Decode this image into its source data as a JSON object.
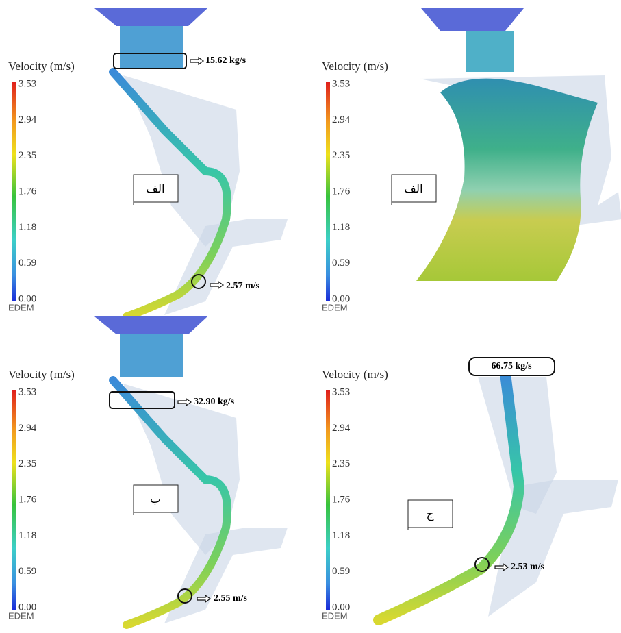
{
  "panels": [
    {
      "legend_title": "Velocity (m/s)",
      "legend_ticks": [
        "3.53",
        "2.94",
        "2.35",
        "1.76",
        "1.18",
        "0.59",
        "0.00"
      ],
      "logo": "EDEM",
      "label": "الف",
      "annotations": [
        "15.62 kg/s",
        "2.57 m/s"
      ]
    },
    {
      "legend_title": "Velocity (m/s)",
      "legend_ticks": [
        "3.53",
        "2.94",
        "2.35",
        "1.76",
        "1.18",
        "0.59",
        "0.00"
      ],
      "logo": "EDEM",
      "label": "الف",
      "annotations": []
    },
    {
      "legend_title": "Velocity (m/s)",
      "legend_ticks": [
        "3.53",
        "2.94",
        "2.35",
        "1.76",
        "1.18",
        "0.59",
        "0.00"
      ],
      "logo": "EDEM",
      "label": "ب",
      "annotations": [
        "32.90 kg/s",
        "2.55 m/s"
      ]
    },
    {
      "legend_title": "Velocity (m/s)",
      "legend_ticks": [
        "3.53",
        "2.94",
        "2.35",
        "1.76",
        "1.18",
        "0.59",
        "0.00"
      ],
      "logo": "EDEM",
      "label": "ج",
      "annotations": [
        "66.75 kg/s",
        "2.53 m/s"
      ]
    }
  ]
}
